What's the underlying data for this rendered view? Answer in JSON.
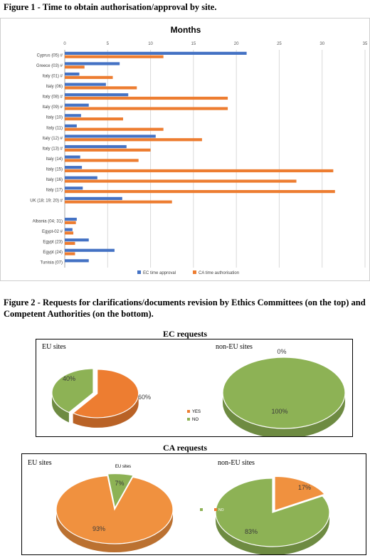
{
  "figure1": {
    "caption": "Figure 1 - Time to obtain authorisation/approval by site.",
    "chart_data": {
      "type": "bar",
      "orientation": "horizontal",
      "title": "Months",
      "xlim": [
        0,
        35
      ],
      "xticks": [
        "0",
        "5",
        "10",
        "15",
        "20",
        "25",
        "30",
        "35"
      ],
      "grid": true,
      "legend_position": "bottom",
      "categories": [
        "Cyprus (05) #",
        "Greece (03) #",
        "Italy (01) #",
        "Italy (06)",
        "Italy (08) #",
        "Italy (09) #",
        "Italy (10)",
        "Italy (11)",
        "Italy (12) #",
        "Italy (13) #",
        "Italy (14)",
        "Italy (15)",
        "Italy (16)",
        "Italy (17)",
        "UK (18; 19; 20) #",
        "",
        "Albania (04; 31)",
        "Egypt-02 #",
        "Egypt (23)",
        "Egypt (24)",
        "Tunisia (07)"
      ],
      "series": [
        {
          "name": "EC time approval",
          "color": "#4472C4",
          "values": [
            21.2,
            6.4,
            1.7,
            4.8,
            7.4,
            2.8,
            1.9,
            1.4,
            10.6,
            7.2,
            1.8,
            2.0,
            3.8,
            2.1,
            6.7,
            null,
            1.4,
            0.9,
            2.8,
            5.8,
            2.8
          ]
        },
        {
          "name": "CA time authorisation",
          "color": "#ED7D31",
          "values": [
            11.5,
            2.3,
            5.6,
            8.4,
            19.0,
            19.0,
            6.8,
            11.5,
            16.0,
            10.0,
            8.6,
            31.3,
            27.0,
            31.5,
            12.5,
            null,
            1.3,
            1.0,
            1.2,
            1.2,
            null
          ]
        }
      ]
    }
  },
  "figure2": {
    "caption": "Figure 2 - Requests for clarifications/documents revision by Ethics Committees (on the top) and Competent Authorities (on the bottom).",
    "ec_heading": "EC requests",
    "ca_heading": "CA requests",
    "chart_data": [
      {
        "type": "pie",
        "panel": "EC requests",
        "label": "EU sites",
        "categories": [
          "YES",
          "NO"
        ],
        "values": [
          60,
          40
        ],
        "data_labels": [
          "60%",
          "40%"
        ],
        "colors": [
          "#ED7D31",
          "#8DB255"
        ]
      },
      {
        "type": "pie",
        "panel": "EC requests",
        "label": "non-EU sites",
        "categories": [
          "YES",
          "NO"
        ],
        "values": [
          0,
          100
        ],
        "data_labels": [
          "0%",
          "100%"
        ],
        "colors": [
          "#ED7D31",
          "#8DB255"
        ]
      },
      {
        "type": "pie",
        "panel": "CA requests",
        "label": "EU sites",
        "title": "EU sites",
        "categories": [
          "YES",
          "NO"
        ],
        "values": [
          93,
          7
        ],
        "data_labels": [
          "93%",
          "7%"
        ],
        "colors": [
          "#F0913F",
          "#8DB255"
        ]
      },
      {
        "type": "pie",
        "panel": "CA requests",
        "label": "non-EU sites",
        "categories": [
          "YES",
          "NO"
        ],
        "values": [
          17,
          83
        ],
        "data_labels": [
          "17%",
          "83%"
        ],
        "colors": [
          "#F0913F",
          "#8DB255"
        ]
      }
    ],
    "legend": {
      "yes": "YES",
      "no": "NO"
    }
  }
}
